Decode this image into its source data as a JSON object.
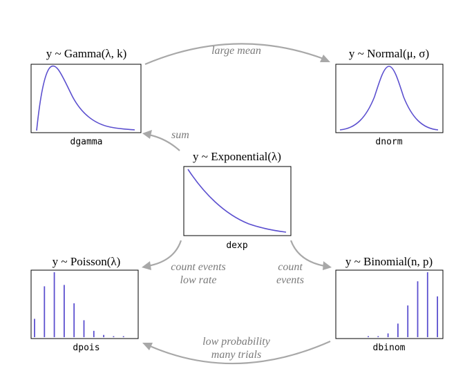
{
  "nodes": {
    "gamma": {
      "title": "y ~ Gamma(λ, k)",
      "func": "dgamma"
    },
    "normal": {
      "title": "y ~ Normal(μ, σ)",
      "func": "dnorm"
    },
    "exponential": {
      "title": "y ~ Exponential(λ)",
      "func": "dexp"
    },
    "poisson": {
      "title": "y ~ Poisson(λ)",
      "func": "dpois"
    },
    "binomial": {
      "title": "y ~ Binomial(n, p)",
      "func": "dbinom"
    }
  },
  "edges": {
    "gamma_to_normal": {
      "label": "large mean"
    },
    "exp_to_gamma": {
      "label": "sum"
    },
    "exp_to_poisson": {
      "line1": "count events",
      "line2": "low rate"
    },
    "exp_to_binomial": {
      "line1": "count",
      "line2": "events"
    },
    "binomial_to_poisson": {
      "line1": "low probability",
      "line2": "many trials"
    }
  },
  "colors": {
    "curve": "#5b4fcf",
    "arrow": "#a8a8a8",
    "label": "#7a7a7a"
  },
  "chart_data": [
    {
      "type": "line",
      "name": "dgamma",
      "shape": "right-skewed density"
    },
    {
      "type": "line",
      "name": "dnorm",
      "shape": "symmetric bell"
    },
    {
      "type": "line",
      "name": "dexp",
      "shape": "exponential decay"
    },
    {
      "type": "bar",
      "name": "dpois",
      "values": [
        0.13,
        0.36,
        0.46,
        0.37,
        0.24,
        0.12,
        0.045,
        0.016,
        0.006,
        0.002
      ]
    },
    {
      "type": "bar",
      "name": "dbinom",
      "values": [
        0.001,
        0.006,
        0.025,
        0.09,
        0.21,
        0.37,
        0.43,
        0.27
      ]
    }
  ]
}
